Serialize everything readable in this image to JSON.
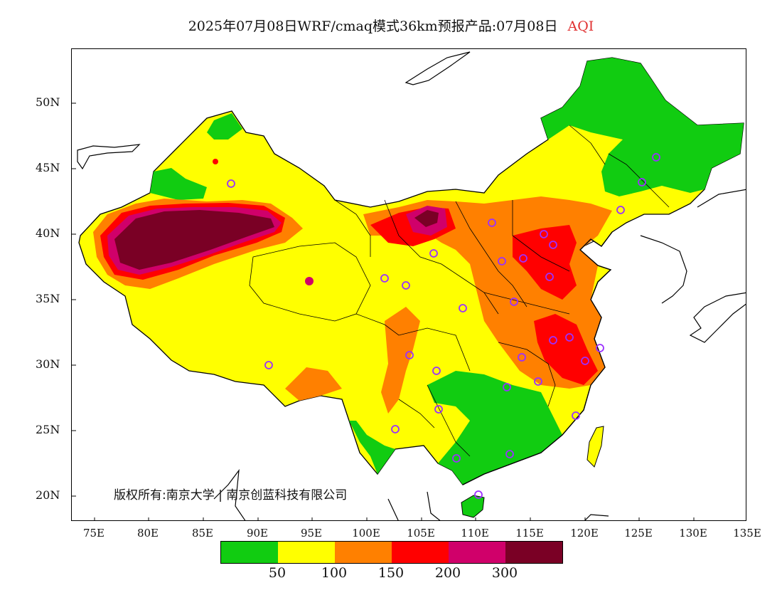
{
  "title": {
    "main": "2025年07月08日WRF/cmaq模式36km预报产品:07月08日",
    "variable": "AQI"
  },
  "copyright": "版权所有:南京大学 | 南京创蓝科技有限公司",
  "axes": {
    "lat_labels": [
      "50N",
      "45N",
      "40N",
      "35N",
      "30N",
      "25N",
      "20N"
    ],
    "lon_labels": [
      "75E",
      "80E",
      "85E",
      "90E",
      "95E",
      "100E",
      "105E",
      "110E",
      "115E",
      "120E",
      "125E",
      "130E",
      "135E"
    ]
  },
  "legend": {
    "colors": [
      "#11cc11",
      "#ffff00",
      "#ff8000",
      "#ff0000",
      "#d0006a",
      "#7a0025"
    ],
    "labels": [
      "50",
      "100",
      "150",
      "200",
      "300"
    ]
  },
  "map": {
    "lon_range": [
      73,
      135
    ],
    "lat_range": [
      18,
      54
    ],
    "station_color": "#9b30ff"
  }
}
